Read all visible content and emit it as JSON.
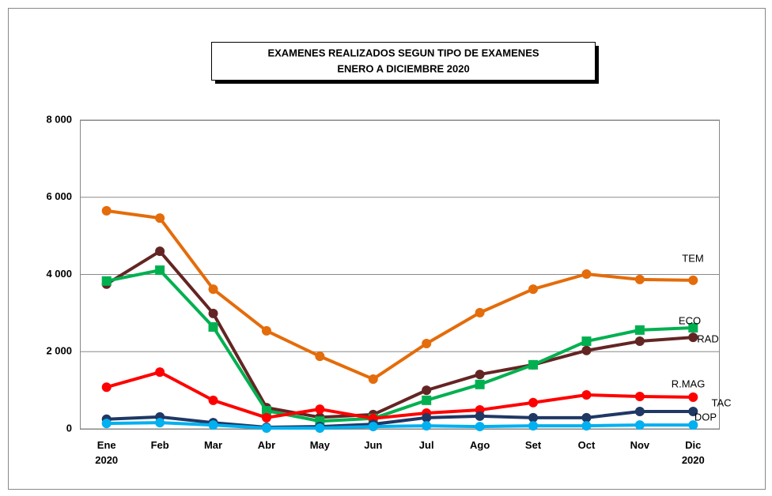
{
  "chart_data": {
    "type": "line",
    "title": "EXAMENES REALIZADOS SEGUN TIPO DE EXAMENES",
    "subtitle": "ENERO A DICIEMBRE 2020",
    "categories": [
      "Ene\n2020",
      "Feb",
      "Mar",
      "Abr",
      "May",
      "Jun",
      "Jul",
      "Ago",
      "Set",
      "Oct",
      "Nov",
      "Dic\n2020"
    ],
    "ylim": [
      0,
      8000
    ],
    "yticks": [
      0,
      {
        "value": 2000,
        "label": "2 000"
      },
      {
        "value": 4000,
        "label": "4 000"
      },
      {
        "value": 6000,
        "label": "6 000"
      },
      {
        "value": 8000,
        "label": "8 000"
      }
    ],
    "grid": true,
    "series": [
      {
        "name": "TEM",
        "color": "#e46c0a",
        "marker": "circle",
        "values": [
          5650,
          5460,
          3620,
          2540,
          1880,
          1290,
          2210,
          3010,
          3620,
          4010,
          3870,
          3850
        ]
      },
      {
        "name": "RAD",
        "color": "#632523",
        "marker": "circle",
        "values": [
          3750,
          4600,
          2990,
          550,
          300,
          370,
          1000,
          1410,
          1660,
          2030,
          2270,
          2370
        ]
      },
      {
        "name": "ECO",
        "color": "#00b050",
        "marker": "square",
        "values": [
          3830,
          4110,
          2640,
          470,
          200,
          270,
          740,
          1150,
          1660,
          2270,
          2560,
          2620
        ]
      },
      {
        "name": "R.MAG",
        "color": "#ff0000",
        "marker": "circle",
        "values": [
          1080,
          1470,
          740,
          290,
          510,
          270,
          410,
          490,
          680,
          880,
          840,
          820
        ]
      },
      {
        "name": "TAC",
        "color": "#1f3864",
        "marker": "circle",
        "values": [
          250,
          310,
          160,
          40,
          60,
          120,
          290,
          330,
          290,
          290,
          450,
          450
        ]
      },
      {
        "name": "DOP",
        "color": "#00b0f0",
        "marker": "circle",
        "values": [
          140,
          160,
          100,
          20,
          20,
          60,
          80,
          60,
          80,
          80,
          100,
          100
        ]
      }
    ]
  }
}
